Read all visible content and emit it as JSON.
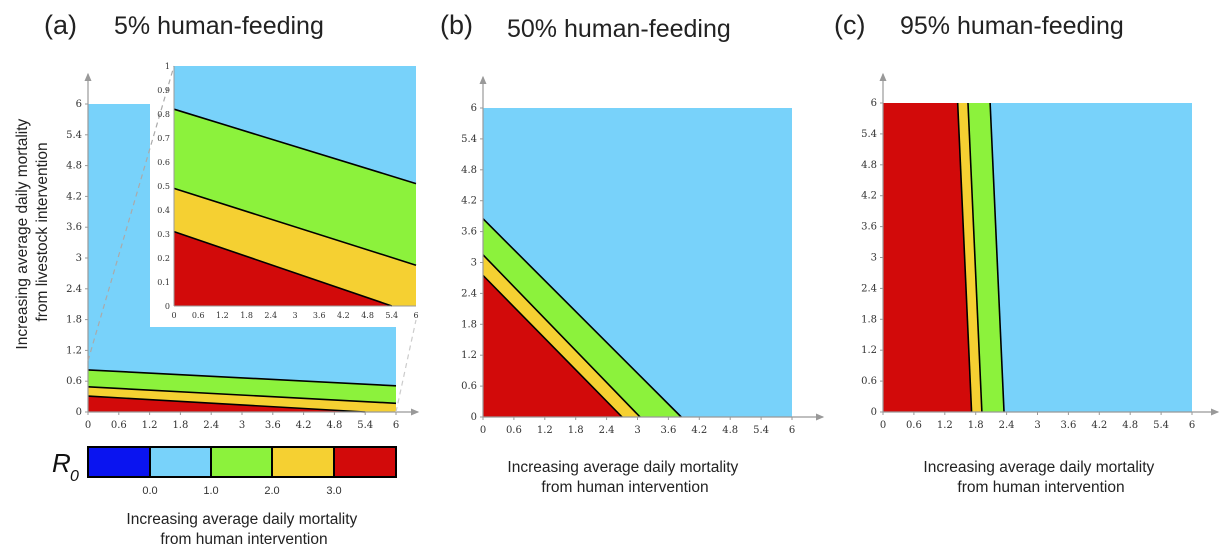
{
  "colors": {
    "blue_dark": "#0a14f0",
    "blue": "#78d2fa",
    "green": "#8cf23c",
    "yellow": "#f5d032",
    "red": "#d20a0a",
    "boundary": "#000000",
    "axis": "#999999"
  },
  "colorbar": {
    "symbol": "R",
    "symbol_sub": "0",
    "ticks": [
      "0.0",
      "1.0",
      "2.0",
      "3.0"
    ]
  },
  "chart_data": [
    {
      "panel": "(a)",
      "title": "5% human-feeding",
      "type": "area",
      "xlabel": "Increasing average daily mortality\nfrom human intervention",
      "ylabel": "Increasing average daily mortality\nfrom livestock intervention",
      "xlim": [
        0,
        6
      ],
      "ylim": [
        0,
        6
      ],
      "xticks": [
        "0",
        "0.6",
        "1.2",
        "1.8",
        "2.4",
        "3",
        "3.6",
        "4.2",
        "4.8",
        "5.4",
        "6"
      ],
      "yticks": [
        "0",
        "0.6",
        "1.2",
        "1.8",
        "2.4",
        "3",
        "3.6",
        "4.2",
        "4.8",
        "5.4",
        "6"
      ],
      "contours": [
        {
          "level": 3,
          "y_at_x0": 0.31,
          "y_at_x6": 0.0,
          "x_at_y0": 5.4
        },
        {
          "level": 2,
          "y_at_x0": 0.49,
          "y_at_x6": 0.17
        },
        {
          "level": 1,
          "y_at_x0": 0.82,
          "y_at_x6": 0.51
        }
      ],
      "inset": {
        "xlim": [
          0,
          6
        ],
        "ylim": [
          0,
          1
        ],
        "xticks": [
          "0",
          "0.6",
          "1.2",
          "1.8",
          "2.4",
          "3",
          "3.6",
          "4.2",
          "4.8",
          "5.4",
          "6"
        ],
        "yticks": [
          "0",
          "0.1",
          "0.2",
          "0.3",
          "0.4",
          "0.5",
          "0.6",
          "0.7",
          "0.8",
          "0.9",
          "1"
        ]
      }
    },
    {
      "panel": "(b)",
      "title": "50% human-feeding",
      "type": "area",
      "xlabel": "Increasing average daily mortality\nfrom human intervention",
      "xlim": [
        0,
        6
      ],
      "ylim": [
        0,
        6
      ],
      "xticks": [
        "0",
        "0.6",
        "1.2",
        "1.8",
        "2.4",
        "3",
        "3.6",
        "4.2",
        "4.8",
        "5.4",
        "6"
      ],
      "yticks": [
        "0",
        "0.6",
        "1.2",
        "1.8",
        "2.4",
        "3",
        "3.6",
        "4.2",
        "4.8",
        "5.4",
        "6"
      ],
      "contours": [
        {
          "level": 3,
          "y_at_x0": 2.75,
          "x_at_y0": 2.7
        },
        {
          "level": 2,
          "y_at_x0": 3.15,
          "x_at_y0": 3.05
        },
        {
          "level": 1,
          "y_at_x0": 3.85,
          "x_at_y0": 3.85
        }
      ]
    },
    {
      "panel": "(c)",
      "title": "95% human-feeding",
      "type": "area",
      "xlabel": "Increasing average daily mortality\nfrom human intervention",
      "xlim": [
        0,
        6
      ],
      "ylim": [
        0,
        6
      ],
      "xticks": [
        "0",
        "0.6",
        "1.2",
        "1.8",
        "2.4",
        "3",
        "3.6",
        "4.2",
        "4.8",
        "5.4",
        "6"
      ],
      "yticks": [
        "0",
        "0.6",
        "1.2",
        "1.8",
        "2.4",
        "3",
        "3.6",
        "4.2",
        "4.8",
        "5.4",
        "6"
      ],
      "contours": [
        {
          "level": 3,
          "x_at_y6": 1.45,
          "x_at_y0": 1.72
        },
        {
          "level": 2,
          "x_at_y6": 1.65,
          "x_at_y0": 1.92
        },
        {
          "level": 1,
          "x_at_y6": 2.08,
          "x_at_y0": 2.35
        }
      ]
    }
  ]
}
